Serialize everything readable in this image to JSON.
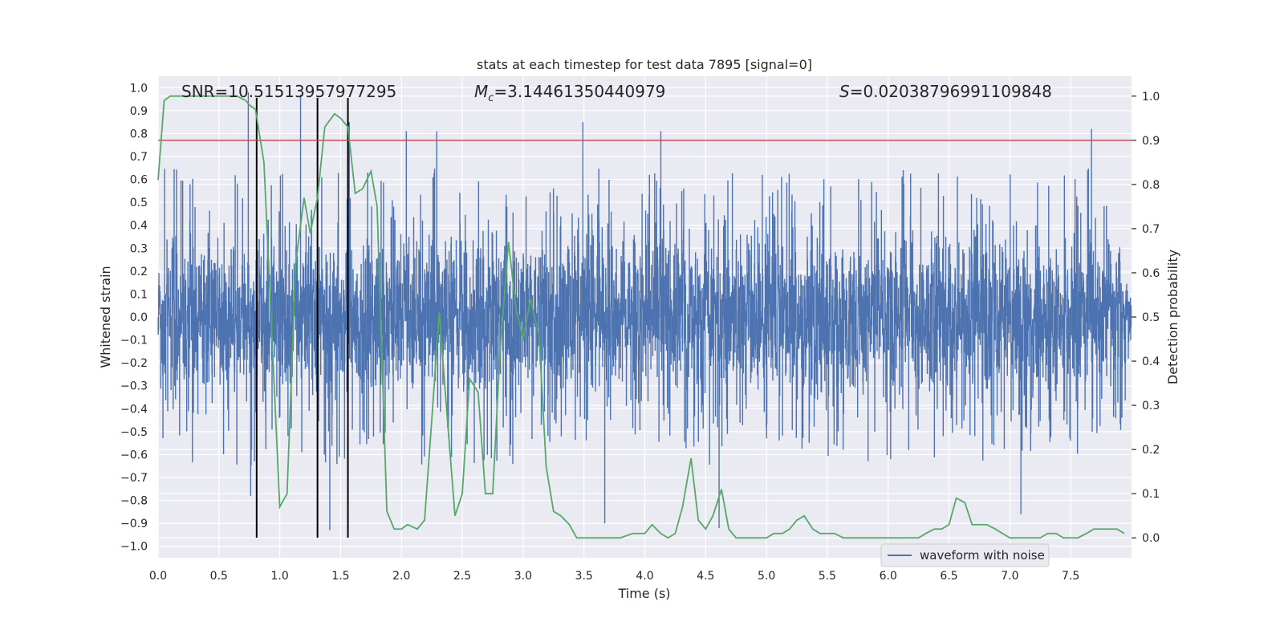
{
  "chart_data": {
    "type": "line",
    "title": "stats at each timestep for test data 7895 [signal=0]",
    "xlabel": "Time (s)",
    "ylabel": "Whitened strain",
    "y2label": "Detection probability",
    "xlim": [
      0.0,
      8.0
    ],
    "ylim": [
      -1.05,
      1.05
    ],
    "y2lim": [
      -0.045,
      1.045
    ],
    "xticks": [
      "0.0",
      "0.5",
      "1.0",
      "1.5",
      "2.0",
      "2.5",
      "3.0",
      "3.5",
      "4.0",
      "4.5",
      "5.0",
      "5.5",
      "6.0",
      "6.5",
      "7.0",
      "7.5"
    ],
    "xtick_values": [
      0,
      0.5,
      1,
      1.5,
      2,
      2.5,
      3,
      3.5,
      4,
      4.5,
      5,
      5.5,
      6,
      6.5,
      7,
      7.5
    ],
    "yticks": [
      "1.0",
      "0.9",
      "0.8",
      "0.7",
      "0.6",
      "0.5",
      "0.4",
      "0.3",
      "0.2",
      "0.1",
      "0.0",
      "−0.1",
      "−0.2",
      "−0.3",
      "−0.4",
      "−0.5",
      "−0.6",
      "−0.7",
      "−0.8",
      "−0.9",
      "−1.0"
    ],
    "ytick_values": [
      1,
      0.9,
      0.8,
      0.7,
      0.6,
      0.5,
      0.4,
      0.3,
      0.2,
      0.1,
      0,
      -0.1,
      -0.2,
      -0.3,
      -0.4,
      -0.5,
      -0.6,
      -0.7,
      -0.8,
      -0.9,
      -1
    ],
    "y2ticks": [
      "1.0",
      "0.9",
      "0.8",
      "0.7",
      "0.6",
      "0.5",
      "0.4",
      "0.3",
      "0.2",
      "0.1",
      "0.0"
    ],
    "y2tick_values": [
      1,
      0.9,
      0.8,
      0.7,
      0.6,
      0.5,
      0.4,
      0.3,
      0.2,
      0.1,
      0
    ],
    "grid": true,
    "legend_position": "bottom-right",
    "annotations": {
      "snr": "SNR=10.51513957977295",
      "mc_symbol": "M",
      "mc_sub": "c",
      "mc_value": "=3.14461350440979",
      "s_symbol": "S",
      "s_value": "=0.02038796991109848"
    },
    "threshold_line": {
      "y2": 0.9,
      "color": "#c44e52"
    },
    "vertical_lines": [
      0.81,
      1.31,
      1.56
    ],
    "series": [
      {
        "name": "waveform with noise",
        "color": "#4c72b0",
        "sample_rate": 512,
        "duration": 8.0,
        "amplitude_bulk": 0.4,
        "spikes": [
          {
            "x": 0.74,
            "y": 0.98
          },
          {
            "x": 0.76,
            "y": -0.78
          },
          {
            "x": 1.17,
            "y": 0.97
          },
          {
            "x": 1.41,
            "y": -0.93
          },
          {
            "x": 1.57,
            "y": 0.85
          },
          {
            "x": 2.04,
            "y": 0.81
          },
          {
            "x": 2.29,
            "y": 0.81
          },
          {
            "x": 3.49,
            "y": 0.85
          },
          {
            "x": 3.67,
            "y": -0.9
          },
          {
            "x": 4.13,
            "y": 0.81
          },
          {
            "x": 4.61,
            "y": -0.92
          },
          {
            "x": 7.67,
            "y": 0.82
          },
          {
            "x": 7.09,
            "y": -0.86
          }
        ]
      },
      {
        "name": "detection probability",
        "color": "#55a868",
        "axis": "y2",
        "x": [
          0.0,
          0.05,
          0.1,
          0.2,
          0.3,
          0.4,
          0.5,
          0.6,
          0.65,
          0.72,
          0.75,
          0.8,
          0.87,
          0.92,
          1.0,
          1.06,
          1.13,
          1.2,
          1.25,
          1.31,
          1.37,
          1.45,
          1.5,
          1.56,
          1.62,
          1.68,
          1.75,
          1.8,
          1.88,
          1.94,
          2.0,
          2.05,
          2.13,
          2.19,
          2.25,
          2.31,
          2.38,
          2.44,
          2.5,
          2.56,
          2.63,
          2.69,
          2.75,
          2.81,
          2.88,
          2.94,
          3.0,
          3.06,
          3.13,
          3.19,
          3.25,
          3.31,
          3.38,
          3.44,
          3.5,
          3.6,
          3.7,
          3.8,
          3.9,
          4.0,
          4.06,
          4.13,
          4.19,
          4.25,
          4.31,
          4.38,
          4.44,
          4.5,
          4.56,
          4.63,
          4.69,
          4.75,
          4.81,
          4.88,
          4.94,
          5.0,
          5.06,
          5.13,
          5.19,
          5.25,
          5.31,
          5.38,
          5.44,
          5.5,
          5.56,
          5.63,
          5.69,
          5.75,
          5.81,
          5.88,
          5.94,
          6.0,
          6.06,
          6.13,
          6.19,
          6.25,
          6.31,
          6.38,
          6.44,
          6.5,
          6.56,
          6.63,
          6.69,
          6.75,
          6.81,
          6.88,
          6.94,
          7.0,
          7.06,
          7.13,
          7.19,
          7.25,
          7.31,
          7.38,
          7.44,
          7.5,
          7.56,
          7.63,
          7.69,
          7.75,
          7.81,
          7.88,
          7.94
        ],
        "y": [
          0.81,
          0.99,
          1.0,
          1.0,
          1.0,
          1.0,
          1.0,
          1.0,
          1.0,
          0.99,
          0.98,
          0.97,
          0.85,
          0.55,
          0.07,
          0.1,
          0.62,
          0.77,
          0.69,
          0.77,
          0.93,
          0.96,
          0.95,
          0.93,
          0.78,
          0.79,
          0.83,
          0.75,
          0.06,
          0.02,
          0.02,
          0.03,
          0.02,
          0.04,
          0.27,
          0.51,
          0.26,
          0.05,
          0.1,
          0.36,
          0.33,
          0.1,
          0.1,
          0.42,
          0.67,
          0.52,
          0.45,
          0.54,
          0.46,
          0.16,
          0.06,
          0.05,
          0.03,
          0.0,
          0.0,
          0.0,
          0.0,
          0.0,
          0.01,
          0.01,
          0.03,
          0.01,
          0.0,
          0.01,
          0.07,
          0.18,
          0.04,
          0.02,
          0.05,
          0.11,
          0.02,
          0.0,
          0.0,
          0.0,
          0.0,
          0.0,
          0.01,
          0.01,
          0.02,
          0.04,
          0.05,
          0.02,
          0.01,
          0.01,
          0.01,
          0.0,
          0.0,
          0.0,
          0.0,
          0.0,
          0.0,
          0.0,
          0.0,
          0.0,
          0.0,
          0.0,
          0.01,
          0.02,
          0.02,
          0.03,
          0.09,
          0.08,
          0.03,
          0.03,
          0.03,
          0.02,
          0.01,
          0.0,
          0.0,
          0.0,
          0.0,
          0.0,
          0.01,
          0.01,
          0.0,
          0.0,
          0.0,
          0.01,
          0.02,
          0.02,
          0.02,
          0.02,
          0.01
        ]
      }
    ]
  }
}
